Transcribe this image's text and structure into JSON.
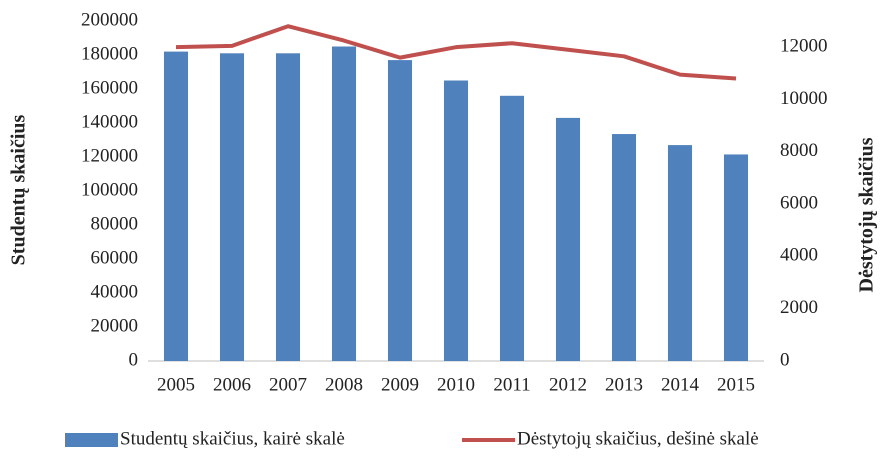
{
  "chart_data": {
    "type": "bar_line",
    "categories": [
      "2005",
      "2006",
      "2007",
      "2008",
      "2009",
      "2010",
      "2011",
      "2012",
      "2013",
      "2014",
      "2015"
    ],
    "series": [
      {
        "name": "Studentų skaičius, kairė skalė",
        "color": "#4f81bd",
        "type": "bar",
        "values": [
          182000,
          181000,
          181000,
          185000,
          177000,
          165000,
          156000,
          143000,
          133500,
          127000,
          121500
        ]
      },
      {
        "name": "Dėstytojų skaičius, dešinė skalė",
        "color": "#c0504d",
        "type": "line",
        "axis": "y2",
        "values": [
          12000,
          12050,
          12800,
          12250,
          11600,
          12000,
          12150,
          11900,
          11650,
          10950,
          10800
        ]
      }
    ],
    "ylabel": "Studentų skaičius",
    "y2label": "Dėstytojų skaičius",
    "ylim": [
      0,
      200000
    ],
    "yticks": [
      0,
      20000,
      40000,
      60000,
      80000,
      100000,
      120000,
      140000,
      160000,
      180000,
      200000
    ],
    "y2lim": [
      0,
      13000
    ],
    "y2ticks": [
      0,
      2000,
      4000,
      6000,
      8000,
      10000,
      12000
    ],
    "legend": "bottom"
  }
}
